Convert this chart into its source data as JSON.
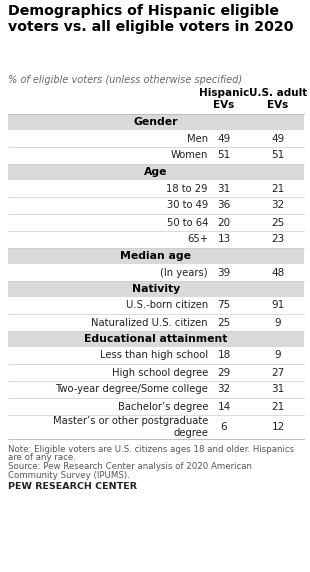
{
  "title": "Demographics of Hispanic eligible\nvoters vs. all eligible voters in 2020",
  "subtitle": "% of eligible voters (unless otherwise specified)",
  "col1_header": "Hispanic\nEVs",
  "col2_header": "U.S. adult\nEVs",
  "sections": [
    {
      "header": "Gender",
      "rows": [
        {
          "label": "Men",
          "v1": "49",
          "v2": "49"
        },
        {
          "label": "Women",
          "v1": "51",
          "v2": "51"
        }
      ]
    },
    {
      "header": "Age",
      "rows": [
        {
          "label": "18 to 29",
          "v1": "31",
          "v2": "21"
        },
        {
          "label": "30 to 49",
          "v1": "36",
          "v2": "32"
        },
        {
          "label": "50 to 64",
          "v1": "20",
          "v2": "25"
        },
        {
          "label": "65+",
          "v1": "13",
          "v2": "23"
        }
      ]
    },
    {
      "header": "Median age",
      "rows": [
        {
          "label": "(In years)",
          "v1": "39",
          "v2": "48"
        }
      ]
    },
    {
      "header": "Nativity",
      "rows": [
        {
          "label": "U.S.-born citizen",
          "v1": "75",
          "v2": "91"
        },
        {
          "label": "Naturalized U.S. citizen",
          "v1": "25",
          "v2": "9"
        }
      ]
    },
    {
      "header": "Educational attainment",
      "rows": [
        {
          "label": "Less than high school",
          "v1": "18",
          "v2": "9"
        },
        {
          "label": "High school degree",
          "v1": "29",
          "v2": "27"
        },
        {
          "label": "Two-year degree/Some college",
          "v1": "32",
          "v2": "31"
        },
        {
          "label": "Bachelor’s degree",
          "v1": "14",
          "v2": "21"
        },
        {
          "label": "Master’s or other postgraduate\ndegree",
          "v1": "6",
          "v2": "12"
        }
      ]
    }
  ],
  "note1": "Note: Eligible voters are U.S. citizens ages 18 and older. Hispanics",
  "note2": "are of any race.",
  "note3": "Source: Pew Research Center analysis of 2020 American",
  "note4": "Community Survey (IPUMS).",
  "source_label": "PEW RESEARCH CENTER",
  "header_bg": "#d9d9d9",
  "row_bg_white": "#ffffff",
  "text_color": "#222222",
  "title_color": "#000000",
  "separator_color": "#cccccc"
}
